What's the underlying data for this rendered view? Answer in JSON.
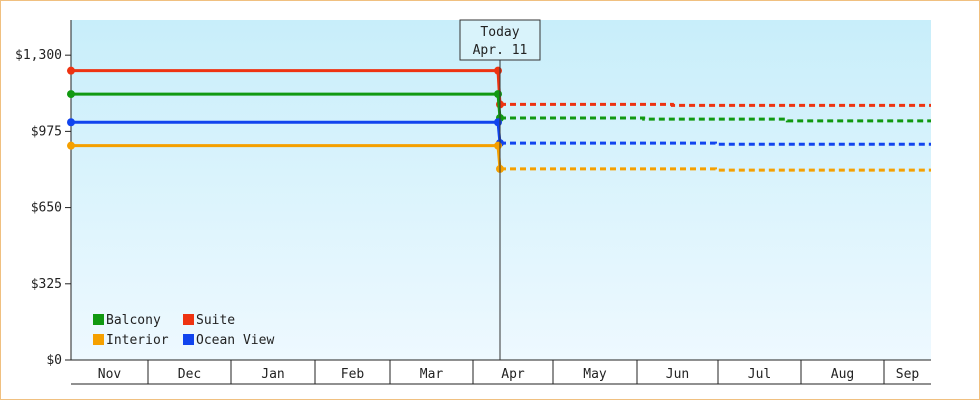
{
  "chart_data": {
    "type": "line",
    "style": "step",
    "y_axis": {
      "ylim": [
        0,
        1450
      ],
      "ticks": [
        0,
        325,
        650,
        975,
        1300
      ],
      "tick_labels": [
        "$0",
        "$325",
        "$650",
        "$975",
        "$1,300"
      ]
    },
    "months": [
      "Nov",
      "Dec",
      "Jan",
      "Feb",
      "Mar",
      "Apr",
      "May",
      "Jun",
      "Jul",
      "Aug",
      "Sep"
    ],
    "today": {
      "line1": "Today",
      "line2": "Apr. 11"
    },
    "series": [
      {
        "name": "Suite",
        "color": "#ee3311",
        "history": [
          1234,
          1234
        ],
        "forecast": [
          1090,
          1090,
          1086,
          1086,
          1086
        ]
      },
      {
        "name": "Balcony",
        "color": "#119911",
        "history": [
          1134,
          1134
        ],
        "forecast": [
          1032,
          1032,
          1027,
          1027,
          1020,
          1020
        ]
      },
      {
        "name": "Ocean View",
        "color": "#1144ee",
        "history": [
          1014,
          1014
        ],
        "forecast": [
          925,
          925,
          920,
          920
        ]
      },
      {
        "name": "Interior",
        "color": "#f5a000",
        "history": [
          914,
          914
        ],
        "forecast": [
          815,
          815,
          810,
          810
        ]
      }
    ],
    "legend": {
      "placement": "bottom-left",
      "entries": [
        {
          "name": "Balcony",
          "color": "#119911"
        },
        {
          "name": "Suite",
          "color": "#ee3311"
        },
        {
          "name": "Interior",
          "color": "#f5a000"
        },
        {
          "name": "Ocean View",
          "color": "#1144ee"
        }
      ]
    },
    "grid": false,
    "colors": {
      "plot_top": "#c8eefa",
      "plot_bottom": "#eef9ff",
      "frame": "#f0c080"
    }
  }
}
